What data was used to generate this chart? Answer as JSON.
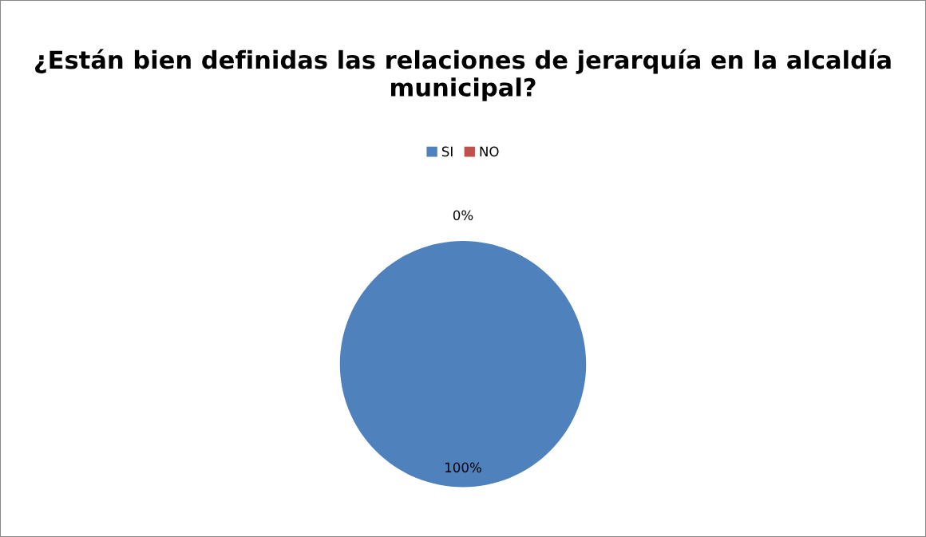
{
  "chart_data": {
    "type": "pie",
    "title": "¿Están bien definidas las relaciones de jerarquía en la alcaldía municipal?",
    "categories": [
      "SI",
      "NO"
    ],
    "values": [
      100,
      0
    ],
    "colors": [
      "#4f81bd",
      "#c0504d"
    ],
    "value_labels": [
      "100%",
      "0%"
    ],
    "legend": "top"
  }
}
